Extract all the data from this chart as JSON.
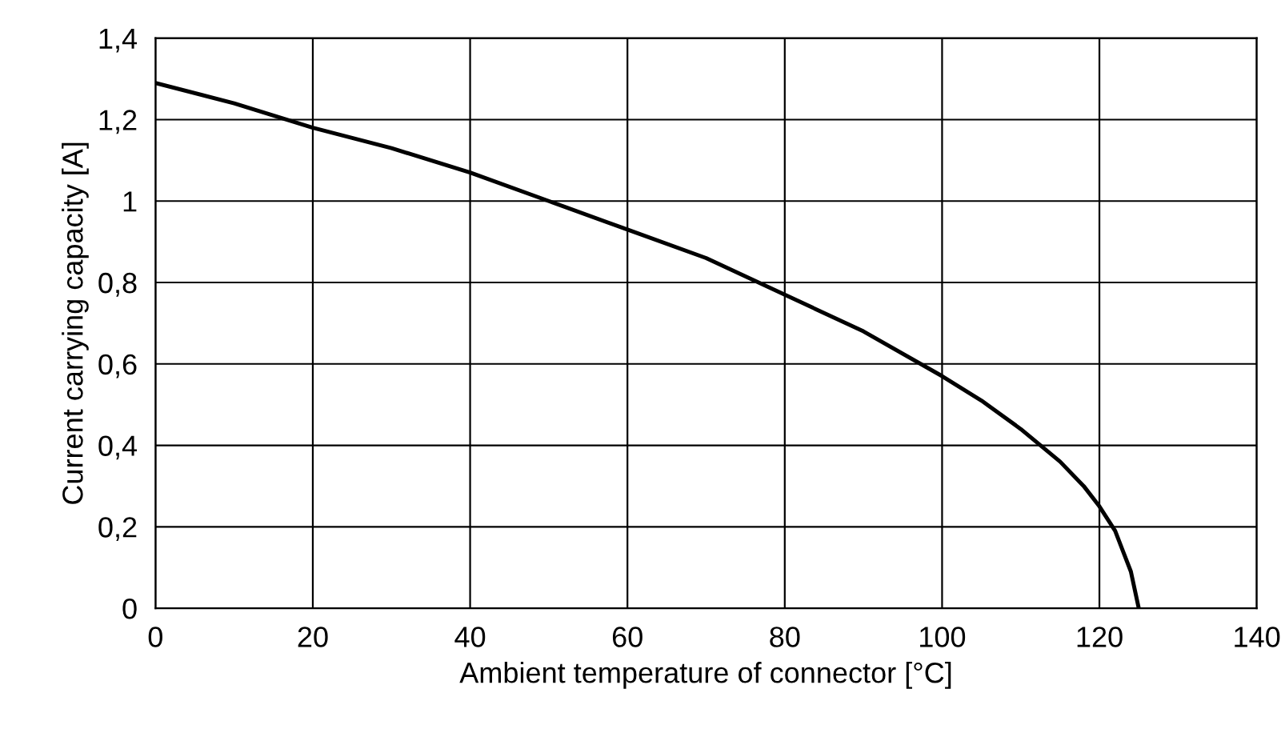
{
  "chart_data": {
    "type": "line",
    "xlabel": "Ambient temperature of connector [°C]",
    "ylabel": "Current carrying capacity [A]",
    "x": [
      0,
      10,
      20,
      30,
      40,
      50,
      60,
      70,
      80,
      90,
      100,
      105,
      110,
      115,
      118,
      120,
      122,
      123,
      124,
      125
    ],
    "series": [
      {
        "color": "#000000",
        "values": [
          1.29,
          1.24,
          1.18,
          1.13,
          1.07,
          1.0,
          0.93,
          0.86,
          0.77,
          0.68,
          0.57,
          0.51,
          0.44,
          0.36,
          0.3,
          0.25,
          0.19,
          0.14,
          0.09,
          0.0
        ]
      }
    ],
    "xlim": [
      0,
      140
    ],
    "xticks": [
      0,
      20,
      40,
      60,
      80,
      100,
      120,
      140
    ],
    "ylim": [
      0,
      1.4
    ],
    "yticks": [
      0,
      {
        "value": 0.2,
        "label": "0,2"
      },
      {
        "value": 0.4,
        "label": "0,4"
      },
      {
        "value": 0.6,
        "label": "0,6"
      },
      {
        "value": 0.8,
        "label": "0,8"
      },
      1,
      {
        "value": 1.2,
        "label": "1,2"
      },
      {
        "value": 1.4,
        "label": "1,4"
      }
    ],
    "grid": true,
    "marker": "none",
    "line_style": "solid"
  }
}
